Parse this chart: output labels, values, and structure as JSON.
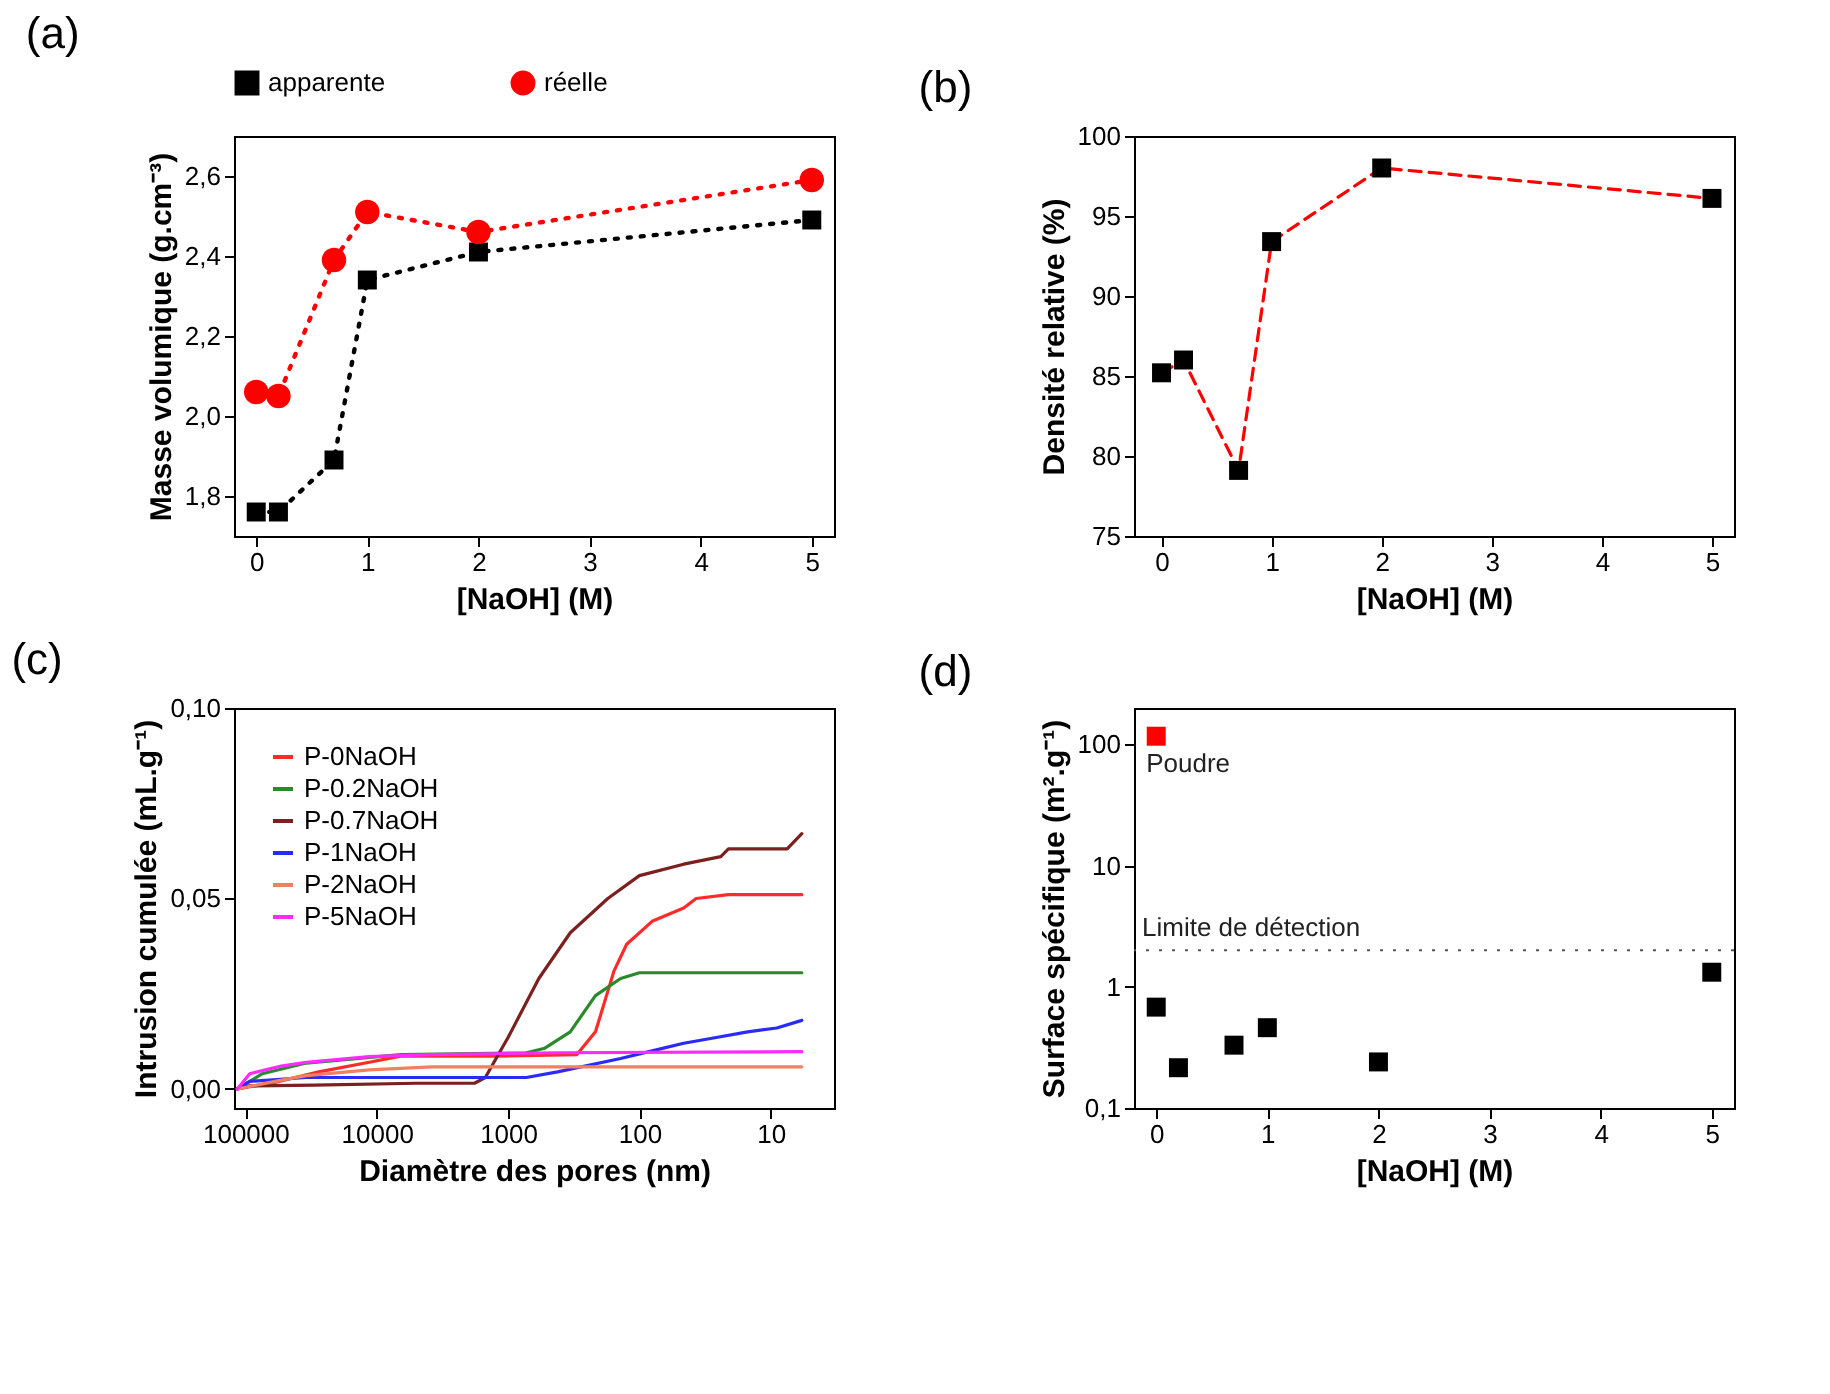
{
  "chart_data": [
    {
      "type": "line",
      "title": "(a)",
      "xlabel": "[NaOH] (M)",
      "ylabel": "Masse volumique (g.cm⁻³)",
      "xlim": [
        -0.2,
        5.2
      ],
      "xticks": [
        0,
        1,
        2,
        3,
        4,
        5
      ],
      "ylim": [
        1.7,
        2.7
      ],
      "yticks": [
        {
          "value": 1.8,
          "label": "1,8"
        },
        {
          "value": 2.0,
          "label": "2,0"
        },
        {
          "value": 2.2,
          "label": "2,2"
        },
        {
          "value": 2.4,
          "label": "2,4"
        },
        {
          "value": 2.6,
          "label": "2,6"
        }
      ],
      "grid": false,
      "legend": "top",
      "line_style": "dotted",
      "x": [
        0,
        0.2,
        0.7,
        1,
        2,
        5
      ],
      "series": [
        {
          "name": "apparente",
          "color": "#000000",
          "marker": "square",
          "values": [
            1.76,
            1.76,
            1.89,
            2.34,
            2.41,
            2.49
          ]
        },
        {
          "name": "réelle",
          "color": "#ff0000",
          "marker": "circle",
          "values": [
            2.06,
            2.05,
            2.39,
            2.51,
            2.46,
            2.59
          ]
        }
      ]
    },
    {
      "type": "line",
      "title": "(b)",
      "xlabel": "[NaOH] (M)",
      "ylabel": "Densité relative (%)",
      "xlim": [
        -0.25,
        5.2
      ],
      "xticks": [
        0,
        1,
        2,
        3,
        4,
        5
      ],
      "ylim": [
        75,
        100
      ],
      "yticks": [
        75,
        80,
        85,
        90,
        95,
        100
      ],
      "grid": false,
      "legend": false,
      "line_style": "dashed",
      "marker": "square",
      "x": [
        0,
        0.2,
        0.7,
        1,
        2,
        5
      ],
      "series": [
        {
          "color": "#ff0000",
          "colors": [
            "#000000",
            "#000000",
            "#000000",
            "#000000",
            "#000000",
            "#000000"
          ],
          "values": [
            85.2,
            86.0,
            79.1,
            93.4,
            98.0,
            96.1
          ]
        }
      ]
    },
    {
      "type": "line",
      "title": "(c)",
      "xlabel": "Diamètre des pores (nm)",
      "ylabel": "Intrusion cumulée (mL.g⁻¹)",
      "log": "x",
      "xlim": [
        122000,
        3.3
      ],
      "xticks": [
        100000,
        10000,
        1000,
        100,
        10
      ],
      "ylim": [
        -0.005,
        0.1
      ],
      "yticks": [
        {
          "value": 0,
          "label": "0,00"
        },
        {
          "value": 0.05,
          "label": "0,05"
        },
        {
          "value": 0.1,
          "label": "0,10"
        }
      ],
      "grid": false,
      "legend": "top left",
      "marker": "none",
      "line_style": "solid",
      "series": [
        {
          "name": "P-0NaOH",
          "color": "#ff2a2a",
          "x": [
            115000,
            59600,
            27600,
            11400,
            6570,
            1260,
            300,
            216,
            156,
            125,
            80,
            46,
            37,
            21,
            5.8
          ],
          "values": [
            0,
            0.0017,
            0.0045,
            0.007,
            0.0086,
            0.0086,
            0.009,
            0.015,
            0.031,
            0.038,
            0.044,
            0.0475,
            0.05,
            0.051,
            0.051
          ]
        },
        {
          "name": "P-0.2NaOH",
          "color": "#2a8a2a",
          "x": [
            115000,
            74300,
            34400,
            6570,
            726,
            525,
            336,
            216,
            139,
            100,
            5.8
          ],
          "values": [
            0,
            0.004,
            0.0068,
            0.009,
            0.0095,
            0.0107,
            0.015,
            0.0245,
            0.029,
            0.0305,
            0.0305
          ]
        },
        {
          "name": "P-0.7NaOH",
          "color": "#7b1f1f",
          "x": [
            115000,
            92600,
            30000,
            5000,
            1800,
            1490,
            1000,
            583,
            336,
            174,
            100,
            46,
            24,
            21,
            7.5,
            5.8
          ],
          "values": [
            0,
            0.0008,
            0.001,
            0.0015,
            0.0015,
            0.003,
            0.0135,
            0.029,
            0.041,
            0.05,
            0.056,
            0.059,
            0.061,
            0.063,
            0.063,
            0.067
          ]
        },
        {
          "name": "P-1NaOH",
          "color": "#2a2aff",
          "x": [
            115000,
            92600,
            34400,
            726,
            420,
            139,
            80,
            46,
            26,
            15,
            9,
            5.8
          ],
          "values": [
            0,
            0.002,
            0.003,
            0.003,
            0.0045,
            0.008,
            0.01,
            0.012,
            0.0135,
            0.015,
            0.016,
            0.018
          ]
        },
        {
          "name": "P-2NaOH",
          "color": "#f08060",
          "x": [
            115000,
            59600,
            34400,
            11400,
            3790,
            5.8
          ],
          "values": [
            0,
            0.002,
            0.0035,
            0.005,
            0.0058,
            0.0058
          ]
        },
        {
          "name": "P-5NaOH",
          "color": "#ff2aff",
          "x": [
            115000,
            92600,
            53300,
            34400,
            11400,
            3790,
            420,
            5.8
          ],
          "values": [
            0,
            0.004,
            0.006,
            0.007,
            0.0085,
            0.009,
            0.0095,
            0.0098
          ]
        }
      ]
    },
    {
      "type": "scatter",
      "title": "(d)",
      "xlabel": "[NaOH] (M)",
      "ylabel": "Surface spécifique (m².g⁻¹)",
      "log": "y",
      "xlim": [
        -0.2,
        5.2
      ],
      "xticks": [
        0,
        1,
        2,
        3,
        4,
        5
      ],
      "ylim": [
        0.1,
        200
      ],
      "yticks": [
        {
          "value": 0.1,
          "label": "0,1"
        },
        1,
        10,
        100
      ],
      "grid": false,
      "legend": false,
      "marker": "square",
      "series": [
        {
          "color": "#000000",
          "x": [
            0,
            0.2,
            0.7,
            1,
            2,
            5
          ],
          "values": [
            0.68,
            0.215,
            0.33,
            0.46,
            0.24,
            1.32
          ]
        },
        {
          "color": "#ff0000",
          "x": [
            0
          ],
          "values": [
            117
          ]
        }
      ],
      "annotations": [
        {
          "text": "Poudre",
          "x": 0,
          "y": 117
        }
      ],
      "ref_lines": [
        {
          "axis": "y",
          "value": 2,
          "label": "Limite de détection",
          "color": "#555555",
          "line_style": "dotted"
        }
      ]
    }
  ]
}
